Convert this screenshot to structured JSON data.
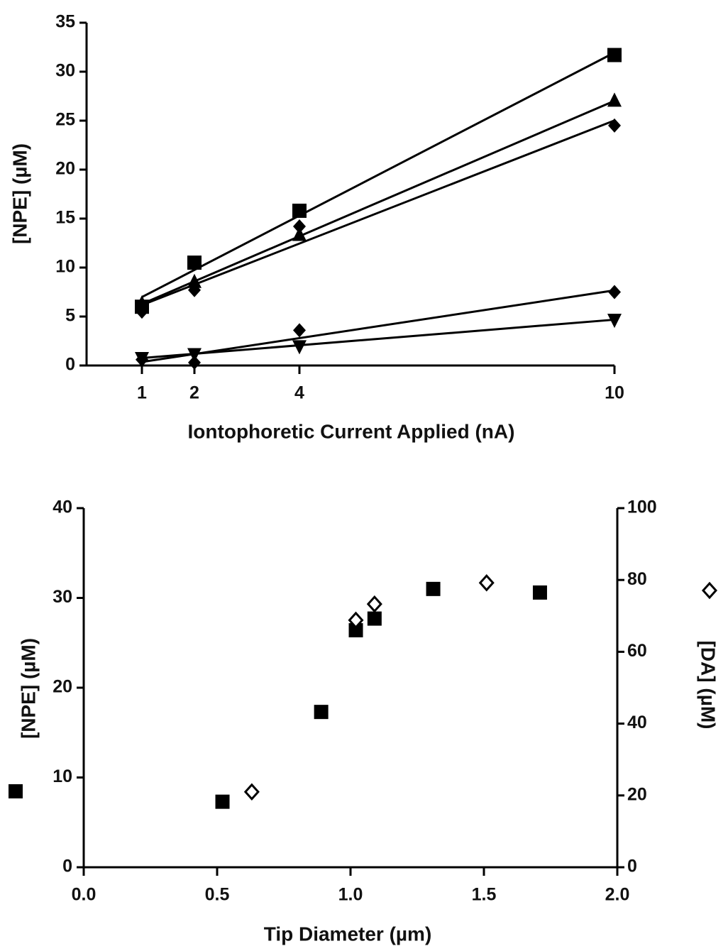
{
  "chart_data": [
    {
      "type": "scatter",
      "fit": true,
      "xlabel": "Iontophoretic  Current Applied  (nA)",
      "ylabel": "[NPE] (µM)",
      "x": [
        1,
        2,
        4,
        10
      ],
      "series": [
        {
          "marker": "square",
          "color": "#000000",
          "values": [
            6.0,
            10.5,
            15.8,
            31.7
          ]
        },
        {
          "marker": "triangle-up",
          "color": "#000000",
          "values": [
            6.3,
            8.5,
            13.3,
            27.0
          ]
        },
        {
          "marker": "diamond",
          "color": "#000000",
          "values": [
            5.5,
            7.7,
            14.2,
            24.5
          ]
        },
        {
          "marker": "diamond",
          "color": "#000000",
          "values": [
            0.6,
            0.3,
            3.6,
            7.5
          ]
        },
        {
          "marker": "triangle-down",
          "color": "#000000",
          "values": [
            0.8,
            1.2,
            2.0,
            4.7
          ]
        }
      ],
      "xlim": [
        0,
        10
      ],
      "xticks": [
        1,
        2,
        4,
        10
      ],
      "ylim": [
        0,
        35
      ],
      "yticks": [
        0,
        5,
        10,
        15,
        20,
        25,
        30,
        35
      ]
    },
    {
      "type": "scatter",
      "fit": false,
      "xlabel": "Tip  Diameter (µm)",
      "ylabel": "[NPE] (µM)",
      "y2label": "[DA] (µM)",
      "series": [
        {
          "marker": "square",
          "color": "#000000",
          "x": [
            0.52,
            0.89,
            1.02,
            1.09,
            1.31,
            1.71
          ],
          "values": [
            7.3,
            17.3,
            26.4,
            27.7,
            31.0,
            30.6
          ]
        },
        {
          "marker": "diamond-open",
          "color": "#000000",
          "axis": "y2",
          "x": [
            0.63,
            1.02,
            1.09,
            1.51
          ],
          "values": [
            21,
            68.8,
            73.3,
            79.2
          ]
        }
      ],
      "xlim": [
        0,
        2
      ],
      "xticks": [
        {
          "value": 0,
          "label": "0.0"
        },
        0.5,
        {
          "value": 1,
          "label": "1.0"
        },
        1.5,
        {
          "value": 2,
          "label": "2.0"
        }
      ],
      "ylim": [
        0,
        40
      ],
      "yticks": [
        0,
        10,
        20,
        30,
        40
      ],
      "y2lim": [
        0,
        100
      ],
      "y2ticks": [
        0,
        20,
        40,
        60,
        80,
        100
      ]
    }
  ]
}
